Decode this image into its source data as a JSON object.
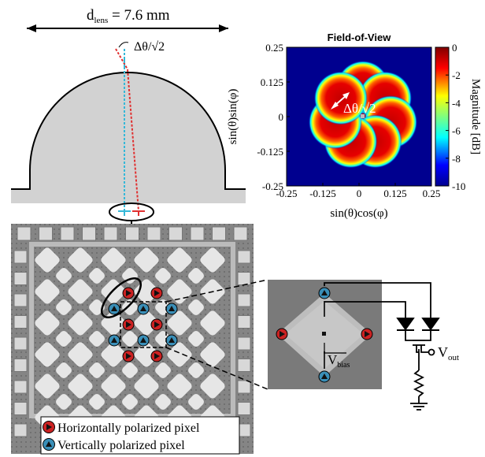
{
  "lens": {
    "diameter_label": "d",
    "diameter_subscript": "lens",
    "diameter_value": " = 7.6 mm",
    "angle_label": "Δθ/√2"
  },
  "fov": {
    "title": "Field-of-View",
    "ylabel": "sin(θ)sin(φ)",
    "xlabel": "sin(θ)cos(φ)",
    "colorbar_label": "Magnitude [dB]",
    "x_ticks": [
      "-0.25",
      "-0.125",
      "0",
      "0.125",
      "0.25"
    ],
    "y_ticks": [
      "0.25",
      "0.125",
      "0",
      "-0.125",
      "-0.25"
    ],
    "colorbar_ticks": [
      "0",
      "-2",
      "-4",
      "-6",
      "-8",
      "-10"
    ],
    "beam_label": "Δθ/√2"
  },
  "legend": {
    "horizontal": "Horizontally polarized pixel",
    "vertical": "Vertically polarized pixel"
  },
  "circuit": {
    "vbias_main": "V",
    "vbias_sub": "bias",
    "vout_main": "V",
    "vout_sub": "out"
  },
  "colors": {
    "lens_fill": "#d2d2d2",
    "ray_red": "#e03030",
    "ray_blue": "#35b8d8",
    "pixel_red": "#cc2222",
    "pixel_blue": "#3a8fb8",
    "chip_background": "#8a8a8a",
    "chip_window": "#e6e6e6"
  }
}
